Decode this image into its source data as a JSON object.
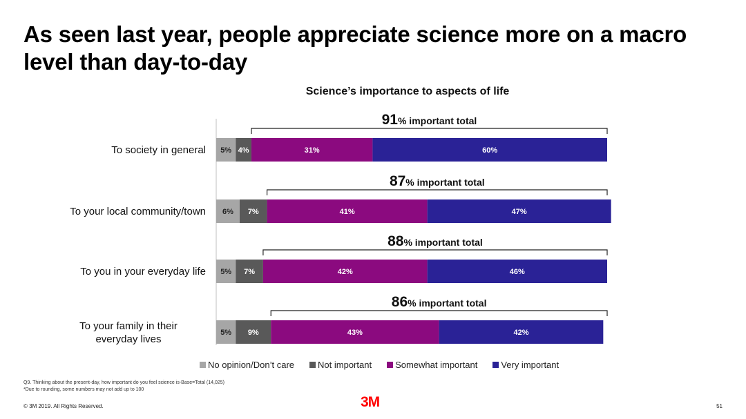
{
  "title": "As seen last year, people appreciate science more on a macro level than day-to-day",
  "chart_data": {
    "type": "bar",
    "orientation": "horizontal-stacked",
    "title": "Science’s importance to aspects of life",
    "categories": [
      "To society in general",
      "To your local community/town",
      "To you in your everyday life",
      "To your family in their everyday lives"
    ],
    "series": [
      {
        "name": "No opinion/Don’t care",
        "color": "#a6a6a6",
        "values": [
          5,
          6,
          5,
          5
        ]
      },
      {
        "name": "Not important",
        "color": "#595959",
        "values": [
          4,
          7,
          7,
          9
        ]
      },
      {
        "name": "Somewhat important",
        "color": "#8b0a7f",
        "values": [
          31,
          41,
          42,
          43
        ]
      },
      {
        "name": "Very important",
        "color": "#2a2296",
        "values": [
          60,
          47,
          46,
          42
        ]
      }
    ],
    "important_totals": [
      91,
      87,
      88,
      86
    ],
    "important_total_suffix": "% important total",
    "xlim": [
      0,
      100
    ],
    "legend": "bottom"
  },
  "footnotes": [
    "Q9. Thinking about the present-day, how important do you feel science is-Base=Total (14,025)",
    "*Due to rounding, some numbers may not add up to 100"
  ],
  "footer": {
    "copyright": "© 3M 2019.   All Rights Reserved.",
    "logo": "3M",
    "page": "51"
  }
}
